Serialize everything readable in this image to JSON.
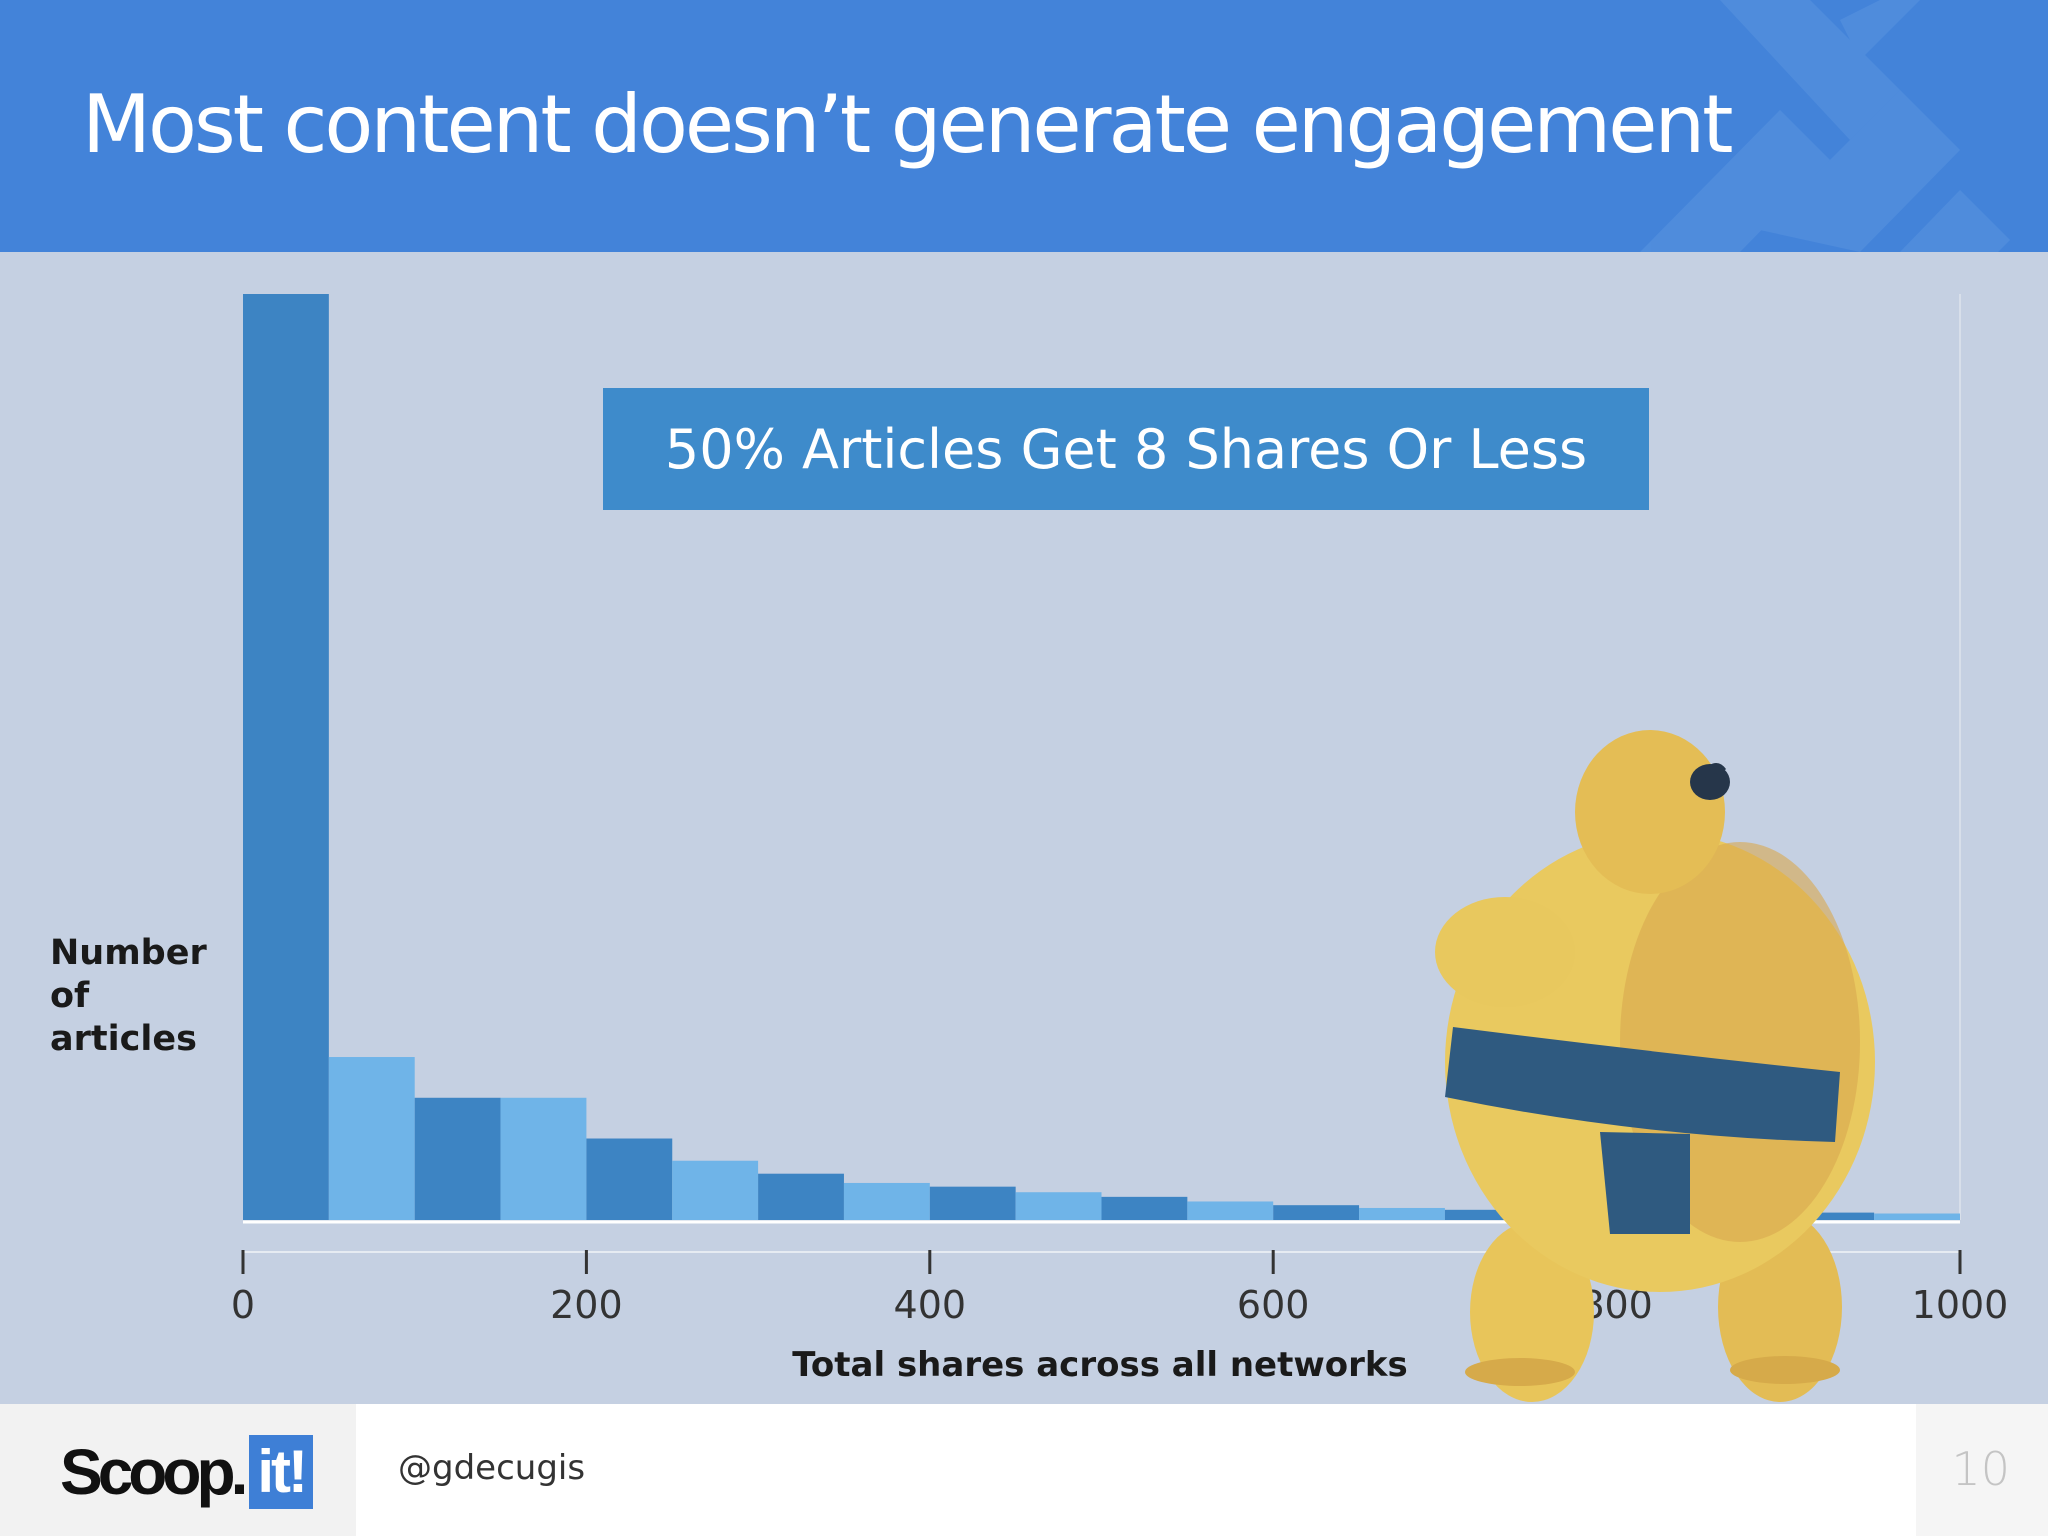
{
  "header": {
    "title": "Most content doesn’t generate engagement"
  },
  "callout": {
    "text": "50% Articles Get 8 Shares Or Less"
  },
  "chart_data": {
    "type": "bar",
    "xlabel": "Total shares across all networks",
    "ylabel": "Number\nof\narticles",
    "xlim": [
      0,
      1000
    ],
    "xticks": [
      "0",
      "200",
      "400",
      "600",
      "800",
      "1000"
    ],
    "ylim": [
      0,
      100
    ],
    "bin_width": 50,
    "bins": [
      {
        "x": 0,
        "value": 100
      },
      {
        "x": 50,
        "value": 17.6
      },
      {
        "x": 100,
        "value": 13.2
      },
      {
        "x": 150,
        "value": 13.2
      },
      {
        "x": 200,
        "value": 8.8
      },
      {
        "x": 250,
        "value": 6.4
      },
      {
        "x": 300,
        "value": 5.0
      },
      {
        "x": 350,
        "value": 4.0
      },
      {
        "x": 400,
        "value": 3.6
      },
      {
        "x": 450,
        "value": 3.0
      },
      {
        "x": 500,
        "value": 2.5
      },
      {
        "x": 550,
        "value": 2.0
      },
      {
        "x": 600,
        "value": 1.6
      },
      {
        "x": 650,
        "value": 1.3
      },
      {
        "x": 700,
        "value": 1.1
      },
      {
        "x": 750,
        "value": 1.0
      },
      {
        "x": 800,
        "value": 0.9
      },
      {
        "x": 850,
        "value": 0.8
      },
      {
        "x": 900,
        "value": 0.8
      },
      {
        "x": 950,
        "value": 0.7
      }
    ],
    "colors": {
      "dark": "#3d84c3",
      "light": "#6fb4e8"
    }
  },
  "footer": {
    "logo_text": "Scoop.",
    "logo_badge": "it!",
    "handle": "@gdecugis",
    "page_number": "10"
  }
}
